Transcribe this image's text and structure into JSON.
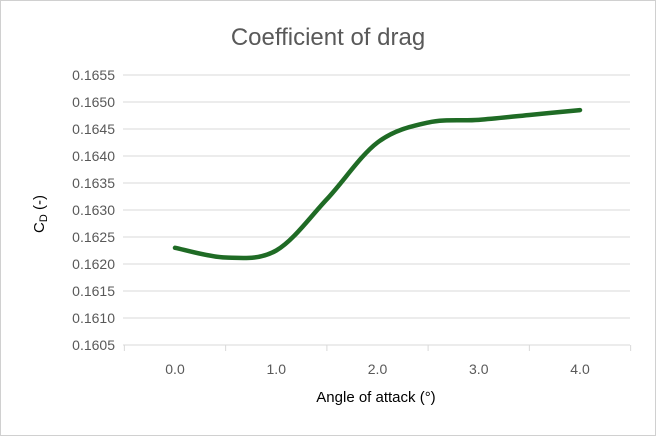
{
  "chart_data": {
    "type": "line",
    "title": "Coefficient of drag",
    "xlabel": "Angle of attack (°)",
    "ylabel": {
      "main": "C",
      "subscript": "D",
      "suffix": " (-)"
    },
    "xlim": [
      0,
      4
    ],
    "ylim": [
      0.1605,
      0.1655
    ],
    "x_ticks": [
      "0.0",
      "1.0",
      "2.0",
      "3.0",
      "4.0"
    ],
    "y_ticks": [
      "0.1655",
      "0.1650",
      "0.1645",
      "0.1640",
      "0.1635",
      "0.1630",
      "0.1625",
      "0.1620",
      "0.1615",
      "0.1610",
      "0.1605"
    ],
    "grid": true,
    "legend": "none",
    "series": [
      {
        "color": "#1f6b25",
        "x": [
          0,
          0.5,
          1.0,
          1.5,
          2.0,
          2.5,
          3.0,
          3.5,
          4.0
        ],
        "y": [
          0.1623,
          0.16212,
          0.16225,
          0.1632,
          0.16425,
          0.16462,
          0.16467,
          0.16476,
          0.16485
        ]
      }
    ]
  }
}
